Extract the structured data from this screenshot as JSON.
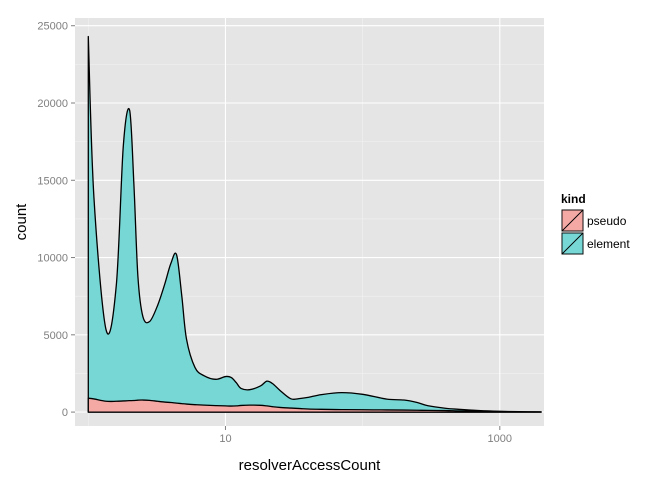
{
  "chart_data": {
    "type": "area",
    "stacked": true,
    "x_scale": "log10",
    "xlabel": "resolverAccessCount",
    "ylabel": "count",
    "xlim": [
      0.8,
      2100
    ],
    "ylim": [
      -900,
      25500
    ],
    "x_ticks": [
      10,
      1000
    ],
    "x_tick_labels": [
      "10",
      "1000"
    ],
    "y_ticks": [
      0,
      5000,
      10000,
      15000,
      20000,
      25000
    ],
    "y_tick_labels": [
      "0",
      "5000",
      "10000",
      "15000",
      "20000",
      "25000"
    ],
    "grid": true,
    "legend": {
      "title": "kind",
      "position": "right",
      "entries": [
        {
          "label": "pseudo",
          "color": "#F4A9A5"
        },
        {
          "label": "element",
          "color": "#76D7D5"
        }
      ]
    },
    "x": [
      1,
      1.1,
      1.35,
      1.6,
      1.8,
      2,
      2.15,
      2.3,
      2.5,
      2.8,
      3.2,
      3.6,
      4,
      4.4,
      4.8,
      5.2,
      6,
      7,
      8.5,
      10,
      11,
      12,
      13,
      15,
      18,
      20,
      22,
      25,
      30,
      35,
      40,
      50,
      70,
      100,
      150,
      200,
      250,
      300,
      400,
      500,
      700,
      1000,
      1400,
      2000
    ],
    "series": [
      {
        "name": "pseudo",
        "values": [
          900,
          850,
          700,
          700,
          720,
          740,
          750,
          770,
          780,
          760,
          700,
          650,
          620,
          580,
          550,
          520,
          480,
          450,
          420,
          400,
          390,
          400,
          430,
          450,
          440,
          400,
          350,
          300,
          260,
          230,
          200,
          180,
          160,
          150,
          140,
          130,
          120,
          110,
          100,
          80,
          50,
          30,
          15,
          10
        ]
      },
      {
        "name": "element",
        "values": [
          23400,
          13000,
          4600,
          7500,
          16500,
          18800,
          14000,
          8000,
          5400,
          5100,
          6200,
          7600,
          9000,
          9600,
          7000,
          4200,
          2400,
          1900,
          1700,
          1900,
          1850,
          1500,
          1100,
          1000,
          1250,
          1600,
          1500,
          1100,
          600,
          650,
          750,
          950,
          1100,
          1000,
          700,
          650,
          500,
          300,
          150,
          100,
          50,
          20,
          10,
          0
        ]
      }
    ]
  }
}
